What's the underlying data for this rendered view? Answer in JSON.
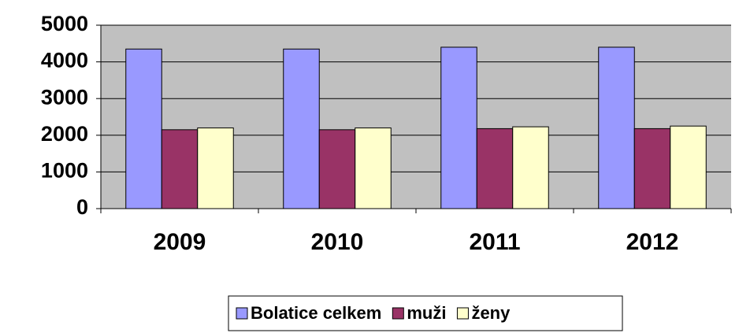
{
  "chart_data": {
    "type": "bar",
    "categories": [
      "2009",
      "2010",
      "2011",
      "2012"
    ],
    "series": [
      {
        "name": "Bolatice celkem",
        "color": "#9999ff",
        "values": [
          4350,
          4350,
          4400,
          4400
        ]
      },
      {
        "name": "muži",
        "color": "#993366",
        "values": [
          2150,
          2150,
          2180,
          2180
        ]
      },
      {
        "name": "ženy",
        "color": "#ffffcc",
        "values": [
          2200,
          2200,
          2230,
          2250
        ]
      }
    ],
    "ylim": [
      0,
      5000
    ],
    "yticks": [
      0,
      1000,
      2000,
      3000,
      4000,
      5000
    ],
    "grid": true,
    "legend": "bottom",
    "plot_background": "#c0c0c0"
  }
}
